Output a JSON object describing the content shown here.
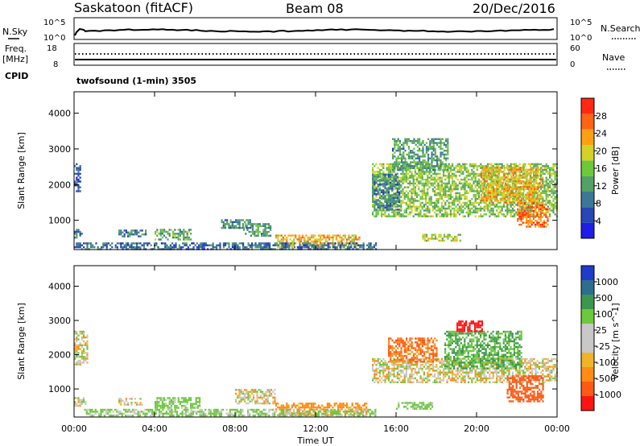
{
  "header": {
    "station": "Saskatoon (fitACF)",
    "beam": "Beam 08",
    "date": "20/Dec/2016"
  },
  "noise_panel": {
    "left_label": "N.Sky",
    "right_label": "N.Search",
    "left_ticks": [
      "10^5",
      "10^0"
    ],
    "right_ticks": [
      "10^5",
      "10^0"
    ]
  },
  "freq_panel": {
    "left_label_line1": "Freq.",
    "left_label_line2": "[MHz]",
    "left_ticks": [
      "18",
      "8"
    ],
    "right_label": "Nave",
    "right_ticks": [
      "60",
      "0"
    ],
    "cpid_label": "CPID",
    "cpid_value": "twofsound (1-min) 3505"
  },
  "colors": {
    "power_scale": [
      "#1e1ee6",
      "#2846b4",
      "#3c7896",
      "#55a064",
      "#6ec83c",
      "#d2d228",
      "#ffa014",
      "#ff6414",
      "#ff2814"
    ],
    "velocity_scale": [
      "#ff1414",
      "#ff5a14",
      "#ff8c14",
      "#f0b428",
      "#c8c8c8",
      "#c8c8c8",
      "#6ec83c",
      "#3c9650",
      "#2d6e8c",
      "#1e3cc8"
    ]
  },
  "chart_data": [
    {
      "type": "heatmap",
      "name": "power",
      "ylabel": "Slant Range [km]",
      "yticks": [
        "1000",
        "2000",
        "3000",
        "4000"
      ],
      "ylim": [
        180,
        4600
      ],
      "xlim": [
        0,
        24
      ],
      "colorbar_label": "Power [dB]",
      "colorbar_ticks": [
        "4",
        "8",
        "12",
        "16",
        "20",
        "24",
        "28"
      ],
      "colorbar_range": [
        0,
        32
      ],
      "echo_regions": [
        {
          "t": [
            0.0,
            0.35
          ],
          "r": [
            1800,
            2600
          ],
          "level": 6
        },
        {
          "t": [
            0.0,
            0.4
          ],
          "r": [
            500,
            760
          ],
          "level": 8
        },
        {
          "t": [
            2.2,
            3.6
          ],
          "r": [
            560,
            740
          ],
          "level": 10
        },
        {
          "t": [
            4.0,
            5.8
          ],
          "r": [
            450,
            760
          ],
          "level": 14
        },
        {
          "t": [
            7.3,
            8.8
          ],
          "r": [
            760,
            1030
          ],
          "level": 10
        },
        {
          "t": [
            8.4,
            9.8
          ],
          "r": [
            580,
            920
          ],
          "level": 12
        },
        {
          "t": [
            10.0,
            14.2
          ],
          "r": [
            260,
            600
          ],
          "level": 22
        },
        {
          "t": [
            0.0,
            15.0
          ],
          "r": [
            200,
            380
          ],
          "level": 8
        },
        {
          "t": [
            14.8,
            24.0
          ],
          "r": [
            1100,
            2600
          ],
          "level": 16
        },
        {
          "t": [
            15.8,
            18.6
          ],
          "r": [
            2400,
            3300
          ],
          "level": 12
        },
        {
          "t": [
            17.3,
            19.2
          ],
          "r": [
            450,
            620
          ],
          "level": 18
        },
        {
          "t": [
            20.2,
            23.2
          ],
          "r": [
            1500,
            2500
          ],
          "level": 22
        },
        {
          "t": [
            22.0,
            23.5
          ],
          "r": [
            800,
            1500
          ],
          "level": 26
        },
        {
          "t": [
            14.8,
            16.2
          ],
          "r": [
            1300,
            2300
          ],
          "level": 10
        }
      ]
    },
    {
      "type": "heatmap",
      "name": "velocity",
      "ylabel": "Slant Range [km]",
      "yticks": [
        "1000",
        "2000",
        "3000",
        "4000"
      ],
      "ylim": [
        180,
        4600
      ],
      "xlim": [
        0,
        24
      ],
      "xlabel": "Time UT",
      "xticks": [
        "00:00",
        "04:00",
        "08:00",
        "12:00",
        "16:00",
        "20:00",
        "00:00"
      ],
      "colorbar_label": "Velocity [m s^-1]",
      "colorbar_ticks": [
        "-1000",
        "-500",
        "-100",
        "-25",
        "25",
        "100",
        "500",
        "1000"
      ],
      "echo_regions": [
        {
          "t": [
            0.0,
            0.7
          ],
          "r": [
            1700,
            2700
          ],
          "v": 0
        },
        {
          "t": [
            0.0,
            0.6
          ],
          "r": [
            500,
            760
          ],
          "v": 0
        },
        {
          "t": [
            2.2,
            3.4
          ],
          "r": [
            560,
            740
          ],
          "v": 0
        },
        {
          "t": [
            4.0,
            6.2
          ],
          "r": [
            450,
            760
          ],
          "v": 120
        },
        {
          "t": [
            8.0,
            10.0
          ],
          "r": [
            580,
            1000
          ],
          "v": 0
        },
        {
          "t": [
            10.0,
            14.5
          ],
          "r": [
            260,
            600
          ],
          "v": -150
        },
        {
          "t": [
            0.5,
            15.0
          ],
          "r": [
            200,
            420
          ],
          "v": 80
        },
        {
          "t": [
            14.8,
            24.0
          ],
          "r": [
            1200,
            1900
          ],
          "v": 0
        },
        {
          "t": [
            15.6,
            18.0
          ],
          "r": [
            1800,
            2500
          ],
          "v": -300
        },
        {
          "t": [
            18.4,
            22.2
          ],
          "r": [
            1600,
            2700
          ],
          "v": 300
        },
        {
          "t": [
            19.0,
            20.3
          ],
          "r": [
            2700,
            3000
          ],
          "v": -800
        },
        {
          "t": [
            16.0,
            17.8
          ],
          "r": [
            420,
            620
          ],
          "v": 120
        },
        {
          "t": [
            21.5,
            23.3
          ],
          "r": [
            650,
            1400
          ],
          "v": -400
        }
      ]
    }
  ]
}
